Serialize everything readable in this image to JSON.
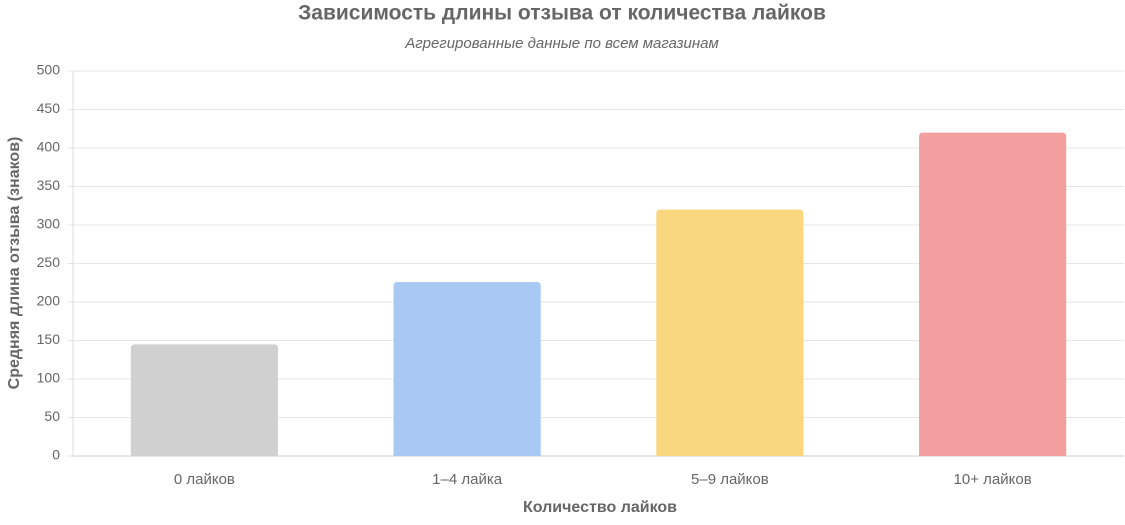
{
  "chart_data": {
    "type": "bar",
    "title": "Зависимость длины отзыва от количества лайков",
    "subtitle": "Агрегированные данные по всем магазинам",
    "x_label": "Количество лайков",
    "y_label": "Средняя длина отзыва (знаков)",
    "categories": [
      "0 лайков",
      "1–4 лайка",
      "5–9 лайков",
      "10+ лайков"
    ],
    "values": [
      145,
      226,
      320,
      420
    ],
    "colors": [
      "#d0d0d0",
      "#a7c9f3",
      "#f9d77e",
      "#f39fa0"
    ],
    "ylim": [
      0,
      500
    ],
    "yticks": [
      0,
      50,
      100,
      150,
      200,
      250,
      300,
      350,
      400,
      450,
      500
    ],
    "grid": true
  }
}
